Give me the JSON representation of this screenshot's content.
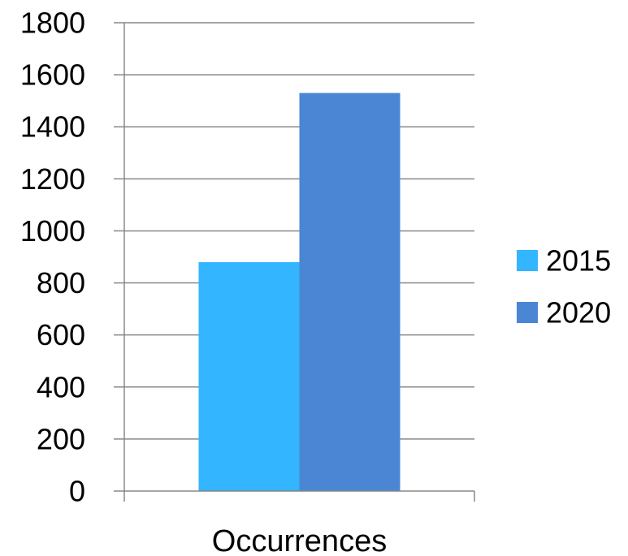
{
  "chart_data": {
    "type": "bar",
    "title": "",
    "xlabel": "",
    "ylabel": "",
    "categories": [
      "Occurrences"
    ],
    "series": [
      {
        "name": "2015",
        "values": [
          880
        ],
        "color": "#33b5ff"
      },
      {
        "name": "2020",
        "values": [
          1530
        ],
        "color": "#4a86d4"
      }
    ],
    "ylim": [
      0,
      1800
    ],
    "yticks": [
      "0",
      "200",
      "400",
      "600",
      "800",
      "1000",
      "1200",
      "1400",
      "1600",
      "1800"
    ],
    "grid": true,
    "legend_position": "right"
  }
}
